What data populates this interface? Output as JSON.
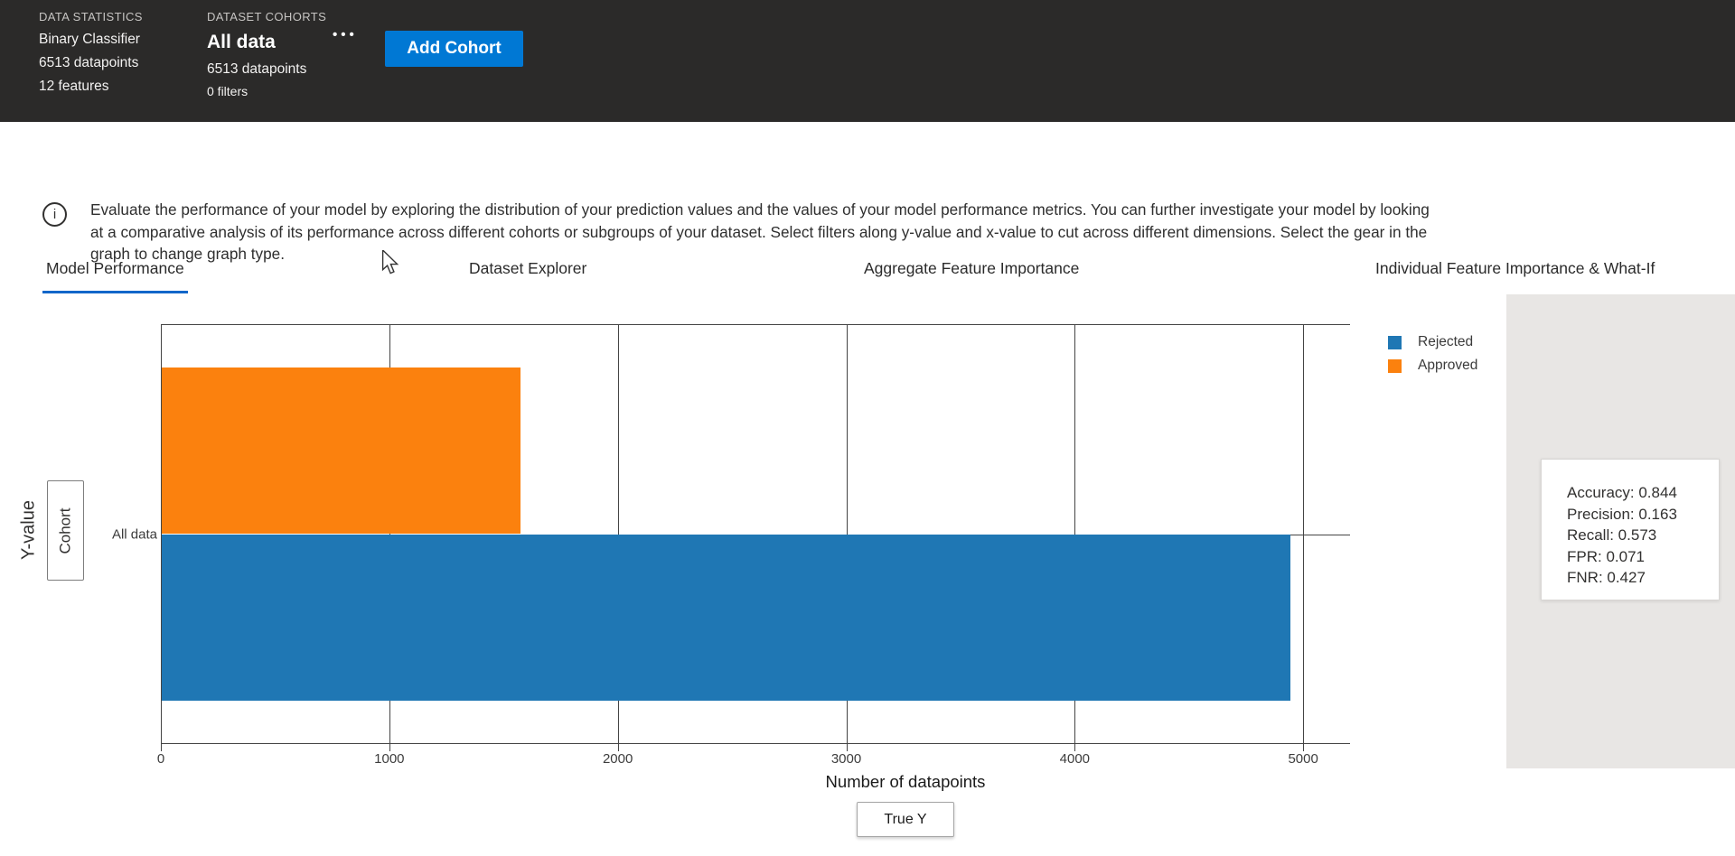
{
  "colors": {
    "accent_blue": "#0078d4",
    "tab_underline": "#1266c9",
    "header_bg": "#2b2a29",
    "rejected_blue": "#1f77b4",
    "approved_orange": "#fb810e",
    "axis_line": "#444444",
    "panel_bg": "#e8e6e4"
  },
  "header": {
    "data_statistics": {
      "caption": "DATA STATISTICS",
      "model_type": "Binary Classifier",
      "datapoints": "6513 datapoints",
      "features": "12 features"
    },
    "dataset_cohorts": {
      "caption": "DATASET COHORTS",
      "cohort_name": "All data",
      "datapoints": "6513 datapoints",
      "filters": "0 filters"
    },
    "more_options_glyph": "•••",
    "add_cohort_label": "Add Cohort"
  },
  "tabs": [
    {
      "label": "Model Performance",
      "active": true
    },
    {
      "label": "Dataset Explorer",
      "active": false
    },
    {
      "label": "Aggregate Feature Importance",
      "active": false
    },
    {
      "label": "Individual Feature Importance & What-If",
      "active": false
    }
  ],
  "info": {
    "icon_glyph": "i",
    "lines": [
      "Evaluate the performance of your model by exploring the distribution of your prediction values and the values of your model performance metrics. You can further investigate your model by looking",
      "at a comparative analysis of its performance across different cohorts or subgroups of your dataset. Select filters along y-value and x-value to cut across different dimensions. Select the gear in the",
      "graph to change graph type."
    ]
  },
  "chart": {
    "y_axis_title": "Y-value",
    "cohort_button_label": "Cohort",
    "category_label": "All data",
    "x_axis_title": "Number of datapoints",
    "true_y_button_label": "True Y",
    "legend": [
      {
        "label": "Rejected"
      },
      {
        "label": "Approved"
      }
    ]
  },
  "chart_data": {
    "type": "bar",
    "orientation": "horizontal",
    "title": "",
    "categories": [
      "All data"
    ],
    "series": [
      {
        "name": "Rejected",
        "color": "#1f77b4",
        "values": [
          4940
        ]
      },
      {
        "name": "Approved",
        "color": "#fb810e",
        "values": [
          1570
        ]
      }
    ],
    "xlabel": "Number of datapoints",
    "ylabel": "Cohort",
    "xlim": [
      0,
      5205
    ],
    "x_ticks": [
      0,
      1000,
      2000,
      3000,
      4000,
      5000
    ],
    "grid": true,
    "legend_position": "top-right"
  },
  "metrics_panel": {
    "lines": [
      "Accuracy: 0.844",
      "Precision: 0.163",
      "Recall: 0.573",
      "FPR: 0.071",
      "FNR: 0.427"
    ]
  }
}
